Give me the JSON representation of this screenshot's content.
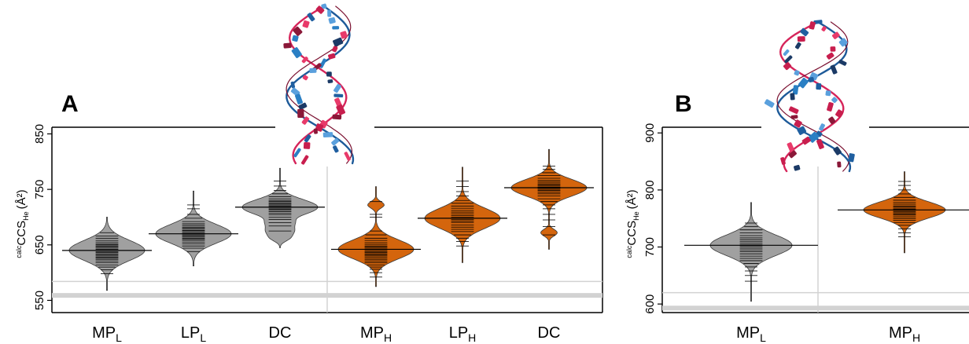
{
  "chart_data": [
    {
      "panel": "A",
      "type": "violin",
      "ylabel": {
        "prefix": "calc",
        "main": "CCS",
        "sub": "He",
        "unit": "(Å²)"
      },
      "yticks": [
        550,
        650,
        750,
        850
      ],
      "ylim": [
        528,
        862
      ],
      "reference_lines": [
        559,
        584
      ],
      "groups": [
        {
          "label": "MP",
          "sub": "L",
          "color": "#a0a0a0",
          "center": 640,
          "min": 568,
          "max": 700,
          "sd": 18,
          "tail": [],
          "beans": [
            598,
            605,
            610,
            614,
            618,
            621,
            624,
            626,
            628,
            630,
            632,
            634,
            636,
            638,
            640,
            642,
            644,
            646,
            648,
            650,
            652,
            655,
            658,
            662,
            666,
            672
          ]
        },
        {
          "label": "LP",
          "sub": "L",
          "color": "#a0a0a0",
          "center": 670,
          "min": 612,
          "max": 747,
          "sd": 17,
          "tail": [],
          "beans": [
            638,
            644,
            648,
            652,
            655,
            658,
            660,
            662,
            664,
            666,
            668,
            670,
            672,
            674,
            676,
            678,
            680,
            682,
            685,
            688,
            692,
            698,
            705,
            715,
            722
          ]
        },
        {
          "label": "DC",
          "sub": "",
          "color": "#a0a0a0",
          "center": 718,
          "min": 645,
          "max": 788,
          "sd": 14,
          "tail": [
            662,
            672,
            680,
            690
          ],
          "beans": [
            675,
            684,
            690,
            696,
            700,
            704,
            707,
            710,
            712,
            714,
            716,
            718,
            720,
            722,
            724,
            726,
            728,
            730,
            733,
            737,
            742,
            748,
            756,
            765
          ]
        },
        {
          "label": "MP",
          "sub": "H",
          "color": "#d4650d",
          "center": 642,
          "min": 575,
          "max": 755,
          "sd": 17,
          "tail": [
            722
          ],
          "beans": [
            592,
            600,
            606,
            610,
            614,
            618,
            621,
            624,
            627,
            630,
            632,
            634,
            636,
            638,
            640,
            642,
            644,
            646,
            648,
            651,
            654,
            658,
            662,
            668,
            675,
            700,
            705,
            728
          ]
        },
        {
          "label": "LP",
          "sub": "H",
          "color": "#d4650d",
          "center": 698,
          "min": 618,
          "max": 790,
          "sd": 18,
          "tail": [],
          "beans": [
            648,
            656,
            662,
            668,
            674,
            678,
            682,
            686,
            690,
            693,
            696,
            698,
            700,
            703,
            706,
            709,
            712,
            716,
            720,
            725,
            730,
            738,
            746,
            755,
            765
          ]
        },
        {
          "label": "DC",
          "sub": "",
          "color": "#d4650d",
          "center": 753,
          "min": 642,
          "max": 822,
          "sd": 15,
          "tail": [
            672
          ],
          "beans": [
            668,
            683,
            695,
            705,
            715,
            722,
            728,
            733,
            738,
            742,
            745,
            748,
            750,
            752,
            754,
            756,
            758,
            760,
            763,
            766,
            770,
            775,
            780,
            786,
            792
          ]
        }
      ]
    },
    {
      "panel": "B",
      "type": "violin",
      "ylabel": {
        "prefix": "calc",
        "main": "CCS",
        "sub": "He",
        "unit": "(Å²)"
      },
      "yticks": [
        600,
        700,
        800,
        900
      ],
      "ylim": [
        585,
        910
      ],
      "reference_lines": [
        593,
        620
      ],
      "groups": [
        {
          "label": "MP",
          "sub": "L",
          "color": "#a0a0a0",
          "center": 703,
          "min": 605,
          "max": 778,
          "sd": 18,
          "tail": [],
          "beans": [
            640,
            650,
            658,
            665,
            671,
            676,
            680,
            684,
            688,
            692,
            695,
            698,
            701,
            704,
            707,
            710,
            713,
            716,
            720,
            725,
            730,
            736,
            742
          ]
        },
        {
          "label": "MP",
          "sub": "H",
          "color": "#d4650d",
          "center": 765,
          "min": 690,
          "max": 832,
          "sd": 14,
          "tail": [],
          "beans": [
            718,
            725,
            732,
            738,
            743,
            747,
            750,
            753,
            756,
            758,
            760,
            762,
            764,
            766,
            768,
            770,
            772,
            775,
            778,
            782,
            787,
            793,
            800,
            808,
            815
          ]
        }
      ]
    }
  ],
  "panels": {
    "a_label": "A",
    "b_label": "B"
  }
}
